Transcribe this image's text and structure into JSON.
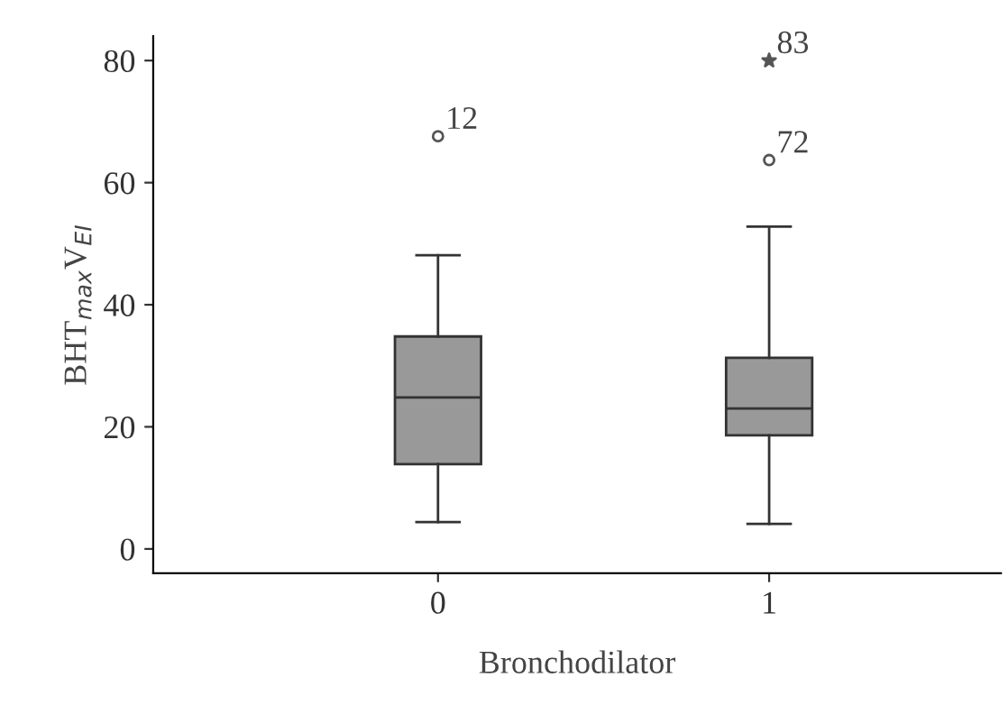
{
  "chart_data": {
    "type": "box",
    "xlabel": "Bronchodilator",
    "ylabel": "BHT$_{max}$V$_{EI}$",
    "categories": [
      "0",
      "1"
    ],
    "color": "#999999",
    "boxes": [
      {
        "low": 4.4,
        "q1": 13.9,
        "median": 24.8,
        "q3": 34.8,
        "high": 48.1
      },
      {
        "low": 4.1,
        "q1": 18.6,
        "median": 23,
        "q3": 31.3,
        "high": 52.8
      }
    ],
    "series": [
      {
        "type": "scatter",
        "marker": "circle",
        "color": "#555555",
        "x": [
          "0",
          "1"
        ],
        "values": [
          67.6,
          63.7
        ]
      },
      {
        "type": "scatter",
        "marker": "star",
        "color": "#555555",
        "x": [
          "1"
        ],
        "values": [
          80
        ]
      }
    ],
    "annotations": [
      {
        "text": "12",
        "x": "0",
        "y": 67.6
      },
      {
        "text": "72",
        "x": "1",
        "y": 63.7
      },
      {
        "text": "83",
        "x": "1",
        "y": 80
      }
    ],
    "ylim": [
      -4,
      84
    ],
    "yticks": [
      0,
      20,
      40,
      60,
      80
    ],
    "grid": false,
    "legend": false
  }
}
